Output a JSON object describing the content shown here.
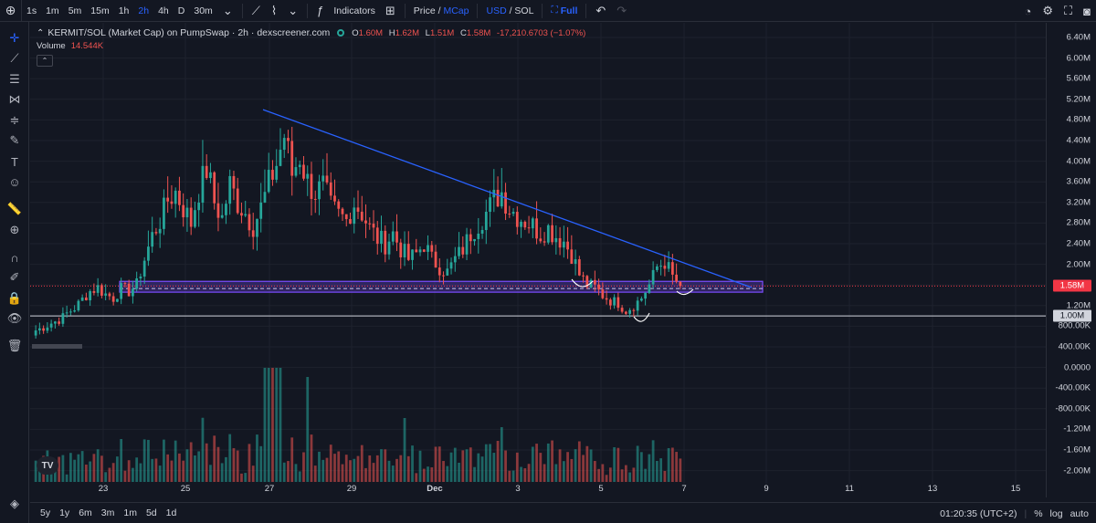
{
  "toolbar": {
    "timeframes": [
      "1s",
      "1m",
      "5m",
      "15m",
      "1h",
      "2h",
      "4h",
      "D",
      "30m"
    ],
    "active_timeframe": "2h",
    "indicators_label": "Indicators",
    "price_label": "Price",
    "slash": "/",
    "mcap_label": "MCap",
    "usd_label": "USD",
    "sol_label": "SOL",
    "full_label": "Full"
  },
  "legend": {
    "symbol": "KERMIT/SOL (Market Cap) on PumpSwap · 2h · dexscreener.com",
    "o_key": "O",
    "o_val": "1.60M",
    "h_key": "H",
    "h_val": "1.62M",
    "l_key": "L",
    "l_val": "1.51M",
    "c_key": "C",
    "c_val": "1.58M",
    "change": "-17,210.6703 (−1.07%)",
    "volume_label": "Volume",
    "volume_value": "14.544K"
  },
  "price_axis": {
    "labels": [
      "6.40M",
      "6.00M",
      "5.60M",
      "5.20M",
      "4.80M",
      "4.40M",
      "4.00M",
      "3.60M",
      "3.20M",
      "2.80M",
      "2.40M",
      "2.00M",
      "1.20M",
      "800.00K",
      "400.00K",
      "0.0000",
      "-400.00K",
      "-800.00K",
      "-1.20M",
      "-1.60M",
      "-2.00M"
    ],
    "current_badge": "1.58M",
    "line_badge": "1.00M",
    "current_color": "#f23645"
  },
  "time_axis": {
    "labels": [
      "23",
      "25",
      "27",
      "29",
      "Dec",
      "3",
      "5",
      "7",
      "9",
      "11",
      "13",
      "15"
    ]
  },
  "bottom": {
    "ranges": [
      "5y",
      "1y",
      "6m",
      "3m",
      "1m",
      "5d",
      "1d"
    ],
    "clock": "01:20:35 (UTC+2)",
    "pct": "%",
    "log": "log",
    "auto": "auto"
  },
  "colors": {
    "up": "#26a69a",
    "down": "#ef5350",
    "trendline": "#2962ff",
    "zone": "#7b4dff",
    "background": "#131722"
  },
  "chart_data": {
    "type": "candlestick",
    "x_ticks": [
      "23",
      "25",
      "27",
      "29",
      "Dec",
      "3",
      "5",
      "7",
      "9",
      "11",
      "13",
      "15"
    ],
    "y_unit": "market cap (SOL)",
    "key_levels": [
      1.0,
      1.58
    ],
    "support_zone": [
      1.46,
      1.67
    ],
    "trendline": {
      "from": {
        "x": "Nov 26",
        "y": 5.0
      },
      "to": {
        "x": "Dec 8",
        "y": 1.55
      }
    },
    "candles_close_millions_approx": [
      0.72,
      0.78,
      0.86,
      0.92,
      1.05,
      1.15,
      1.32,
      1.48,
      1.55,
      1.42,
      1.35,
      1.52,
      1.48,
      1.6,
      2.1,
      2.55,
      2.85,
      3.25,
      3.4,
      3.1,
      2.8,
      3.45,
      3.85,
      3.2,
      2.9,
      3.55,
      3.2,
      3.0,
      2.75,
      3.1,
      3.55,
      3.95,
      4.5,
      3.75,
      4.1,
      3.6,
      3.4,
      3.5,
      3.1,
      2.95,
      2.85,
      3.2,
      3.0,
      2.7,
      2.5,
      2.4,
      2.6,
      2.3,
      2.1,
      2.2,
      2.4,
      2.1,
      1.95,
      1.85,
      2.1,
      2.3,
      2.6,
      2.8,
      3.0,
      3.25,
      3.4,
      3.1,
      2.95,
      2.85,
      2.75,
      2.6,
      2.7,
      2.55,
      2.45,
      2.2,
      1.8,
      1.6,
      1.55,
      1.4,
      1.3,
      1.25,
      1.1,
      1.2,
      1.35,
      1.6,
      1.95,
      2.05,
      1.75,
      1.58
    ]
  }
}
